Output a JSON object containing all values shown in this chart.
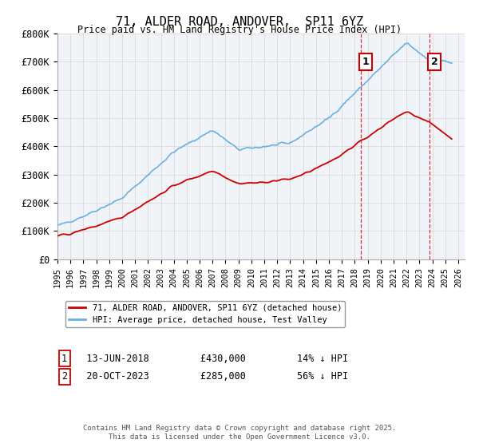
{
  "title": "71, ALDER ROAD, ANDOVER,  SP11 6YZ",
  "subtitle": "Price paid vs. HM Land Registry's House Price Index (HPI)",
  "ylabel_ticks": [
    "£0",
    "£100K",
    "£200K",
    "£300K",
    "£400K",
    "£500K",
    "£600K",
    "£700K",
    "£800K"
  ],
  "ytick_values": [
    0,
    100000,
    200000,
    300000,
    400000,
    500000,
    600000,
    700000,
    800000
  ],
  "ylim": [
    0,
    800000
  ],
  "xlim_start": 1995.0,
  "xlim_end": 2026.5,
  "hpi_color": "#6ab0e0",
  "price_color": "#cc0000",
  "grid_color": "#dddddd",
  "bg_color": "#f0f4f8",
  "transaction1_date": "13-JUN-2018",
  "transaction1_price": 430000,
  "transaction1_year": 2018.45,
  "transaction1_label": "1",
  "transaction1_pct": "14% ↓ HPI",
  "transaction2_date": "20-OCT-2023",
  "transaction2_price": 285000,
  "transaction2_year": 2023.8,
  "transaction2_label": "2",
  "transaction2_pct": "56% ↓ HPI",
  "legend_line1": "71, ALDER ROAD, ANDOVER, SP11 6YZ (detached house)",
  "legend_line2": "HPI: Average price, detached house, Test Valley",
  "footer": "Contains HM Land Registry data © Crown copyright and database right 2025.\nThis data is licensed under the Open Government Licence v3.0.",
  "xtick_years": [
    1995,
    1996,
    1997,
    1998,
    1999,
    2000,
    2001,
    2002,
    2003,
    2004,
    2005,
    2006,
    2007,
    2008,
    2009,
    2010,
    2011,
    2012,
    2013,
    2014,
    2015,
    2016,
    2017,
    2018,
    2019,
    2020,
    2021,
    2022,
    2023,
    2024,
    2025,
    2026
  ]
}
